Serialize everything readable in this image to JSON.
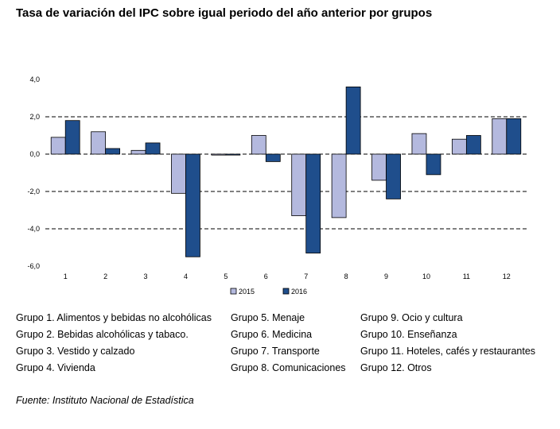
{
  "title": "Tasa de variación del IPC sobre igual periodo del año anterior por grupos",
  "source": "Fuente: Instituto Nacional de Estadística",
  "colors": {
    "series2015": "#b4b9de",
    "series2016": "#1f4e8c",
    "bar_stroke": "#000000"
  },
  "chart_data": {
    "type": "bar",
    "categories": [
      "1",
      "2",
      "3",
      "4",
      "5",
      "6",
      "7",
      "8",
      "9",
      "10",
      "11",
      "12"
    ],
    "series": [
      {
        "name": "2015",
        "values": [
          0.9,
          1.2,
          0.2,
          -2.1,
          -0.05,
          1.0,
          -3.3,
          -3.4,
          -1.4,
          1.1,
          0.8,
          1.9
        ]
      },
      {
        "name": "2016",
        "values": [
          1.8,
          0.3,
          0.6,
          -5.5,
          -0.05,
          -0.4,
          -5.3,
          3.6,
          -2.4,
          -1.1,
          1.0,
          1.9
        ]
      }
    ],
    "y_ticks": [
      "4,0",
      "2,0",
      "0,0",
      "-2,0",
      "-4,0",
      "-6,0"
    ],
    "ylim": [
      -6,
      4
    ],
    "grid": "dashed at 2, 0, -2, -4",
    "legend": "bottom"
  },
  "groups": {
    "col1": [
      "Grupo 1. Alimentos y bebidas no alcohólicas",
      "Grupo 2. Bebidas alcohólicas y  tabaco.",
      "Grupo 3. Vestido y calzado",
      "Grupo 4. Vivienda"
    ],
    "col2": [
      "Grupo 5. Menaje",
      "Grupo 6. Medicina",
      "Grupo 7. Transporte",
      "Grupo 8. Comunicaciones"
    ],
    "col3": [
      "Grupo 9. Ocio y cultura",
      "Grupo 10. Enseñanza",
      "Grupo 11. Hoteles, cafés y restaurantes",
      "Grupo 12. Otros"
    ]
  }
}
